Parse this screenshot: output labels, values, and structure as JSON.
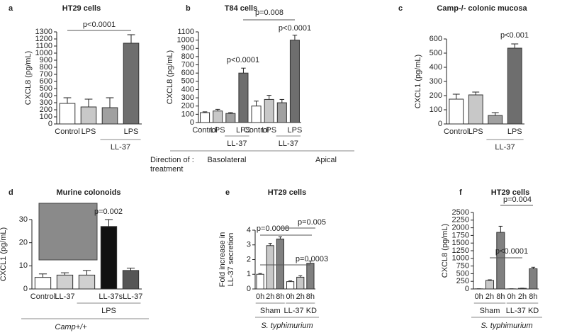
{
  "chart_data": [
    {
      "type": "bar",
      "label": "a",
      "title": "HT29 cells",
      "ylabel": "CXCL8 (pg/mL)",
      "categories": [
        "Control",
        "LPS",
        null,
        "LPS"
      ],
      "values": [
        290,
        240,
        230,
        1140
      ],
      "errors": [
        80,
        110,
        140,
        120
      ],
      "colors": [
        "#ffffff",
        "#c8c8c8",
        "#a0a0a0",
        "#6e6e6e"
      ],
      "ylim": [
        0,
        1300
      ],
      "yticks": [
        0,
        100,
        200,
        300,
        400,
        500,
        600,
        700,
        800,
        900,
        1000,
        1100,
        1200,
        1300
      ],
      "groups": [
        "LL-37"
      ],
      "annotations": [
        "p<0.0001"
      ]
    },
    {
      "type": "bar",
      "label": "b",
      "title": "T84 cells",
      "ylabel": "CXCL8 (pg/mL)",
      "categories": [
        "Control",
        "LPS",
        null,
        "LPS",
        "Control",
        "LPS",
        null,
        "LPS"
      ],
      "values": [
        120,
        140,
        110,
        600,
        200,
        280,
        240,
        1000
      ],
      "errors": [
        10,
        20,
        10,
        60,
        60,
        50,
        40,
        60
      ],
      "colors": [
        "#ffffff",
        "#c8c8c8",
        "#a0a0a0",
        "#6e6e6e",
        "#ffffff",
        "#c8c8c8",
        "#a0a0a0",
        "#6e6e6e"
      ],
      "ylim": [
        0,
        1100
      ],
      "yticks": [
        0,
        100,
        200,
        300,
        400,
        500,
        600,
        700,
        800,
        900,
        1000,
        1100
      ],
      "groups": [
        "LL-37",
        "LL-37"
      ],
      "annotations": [
        "p<0.0001",
        "p<0.0001",
        "p=0.008"
      ],
      "direction_label": [
        "Direction of :",
        "treatment"
      ],
      "direction_groups": [
        "Basolateral",
        "Apical"
      ]
    },
    {
      "type": "bar",
      "label": "c",
      "title": "Camp-/- colonic mucosa",
      "ylabel": "CXCL1 (pg/mL)",
      "categories": [
        "Control",
        "LPS",
        null,
        "LPS"
      ],
      "values": [
        175,
        205,
        60,
        535
      ],
      "errors": [
        35,
        20,
        20,
        30
      ],
      "colors": [
        "#ffffff",
        "#c8c8c8",
        "#a0a0a0",
        "#6e6e6e"
      ],
      "ylim": [
        0,
        600
      ],
      "yticks": [
        0,
        100,
        200,
        300,
        400,
        500,
        600
      ],
      "groups": [
        "LL-37"
      ],
      "annotations": [
        "p<0.001"
      ]
    },
    {
      "type": "bar",
      "label": "d",
      "title": "Murine colonoids",
      "ylabel": "CXCL1 (pg/mL)",
      "categories": [
        "Control",
        "LL-37",
        null,
        "LL-37",
        "sLL-37"
      ],
      "values": [
        5,
        6,
        6,
        27,
        8
      ],
      "errors": [
        1.5,
        1,
        2,
        3,
        1
      ],
      "colors": [
        "#ffffff",
        "#d0d0d0",
        "#d0d0d0",
        "#111111",
        "#555555"
      ],
      "ylim": [
        0,
        30
      ],
      "yticks": [
        0,
        10,
        20,
        30
      ],
      "groups": [
        "LPS"
      ],
      "annotations": [
        "p=0.002"
      ],
      "footer": "Camp+/+"
    },
    {
      "type": "bar",
      "label": "e",
      "title": "HT29 cells",
      "ylabel": [
        "Fold increase in",
        "LL-37 secretion"
      ],
      "categories": [
        "0h",
        "2h",
        "8h",
        "0h",
        "2h",
        "8h"
      ],
      "values": [
        1,
        2.95,
        3.4,
        0.5,
        0.8,
        1.75
      ],
      "errors": [
        0.05,
        0.15,
        0.15,
        0.05,
        0.1,
        0.15
      ],
      "colors": [
        "#ffffff",
        "#c8c8c8",
        "#808080",
        "#ffffff",
        "#c8c8c8",
        "#808080"
      ],
      "ylim": [
        0,
        4
      ],
      "yticks": [
        0,
        1,
        2,
        3,
        4
      ],
      "groups": [
        "Sham",
        "LL-37 KD"
      ],
      "annotations": [
        "p=0.0008",
        "p=0.005",
        "p=0.0003"
      ],
      "footer": "S. typhimurium"
    },
    {
      "type": "bar",
      "label": "f",
      "title": "HT29 cells",
      "ylabel": "CXCL8 (pg/mL)",
      "categories": [
        "0h",
        "2h",
        "8h",
        "0h",
        "2h",
        "8h"
      ],
      "values": [
        5,
        280,
        1850,
        5,
        20,
        660
      ],
      "errors": [
        0,
        20,
        200,
        0,
        5,
        50
      ],
      "colors": [
        "#ffffff",
        "#c8c8c8",
        "#808080",
        "#ffffff",
        "#c8c8c8",
        "#808080"
      ],
      "ylim": [
        0,
        2500
      ],
      "yticks": [
        0,
        250,
        500,
        750,
        1000,
        1250,
        1500,
        1750,
        2000,
        2250,
        2500
      ],
      "groups": [
        "Sham",
        "LL-37 KD"
      ],
      "annotations": [
        "p=0.004",
        "p<0.0001"
      ],
      "footer": "S. typhimurium"
    }
  ]
}
